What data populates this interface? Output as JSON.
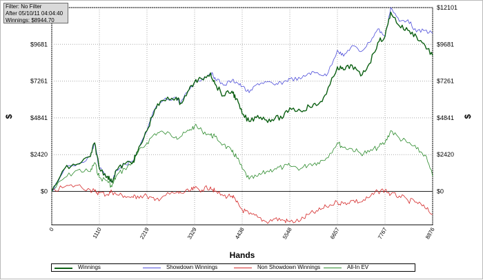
{
  "info": {
    "filter": "Filter: No Filter",
    "after": "After 05/10/11 04:04:40",
    "winnings": "Winnings: $8944.70"
  },
  "colors": {
    "winnings": "#0b5f12",
    "showdown": "#4c4cd9",
    "non_showdown": "#d42828",
    "allin_ev": "#2a8a2a",
    "grid": "#a8a8a8"
  },
  "chart_data": {
    "type": "line",
    "xlabel": "Hands",
    "ylabel_left": "$",
    "ylabel_right": "$",
    "xlim": [
      0,
      8876
    ],
    "ylim": [
      -2200,
      12101
    ],
    "x_ticks": [
      0,
      1110,
      2219,
      3329,
      4438,
      5548,
      6657,
      7767,
      8876
    ],
    "y_ticks": [
      {
        "value": 0,
        "label": "$0"
      },
      {
        "value": 2420,
        "label": "$2420"
      },
      {
        "value": 4841,
        "label": "$4841"
      },
      {
        "value": 7261,
        "label": "$7261"
      },
      {
        "value": 9681,
        "label": "$9681"
      },
      {
        "value": 12101,
        "label": "$12101"
      }
    ],
    "grid": true,
    "legend_position": "bottom",
    "x": [
      0,
      300,
      600,
      900,
      1000,
      1110,
      1300,
      1400,
      1500,
      1700,
      1900,
      2000,
      2219,
      2400,
      2600,
      2900,
      3000,
      3200,
      3329,
      3500,
      3700,
      3800,
      4000,
      4200,
      4300,
      4438,
      4600,
      4800,
      5000,
      5200,
      5400,
      5548,
      5800,
      6000,
      6200,
      6400,
      6657,
      6800,
      7000,
      7200,
      7400,
      7600,
      7767,
      7900,
      8100,
      8300,
      8500,
      8700,
      8876
    ],
    "series": [
      {
        "name": "Winnings",
        "values": [
          0,
          1500,
          1800,
          2300,
          3200,
          1500,
          1000,
          600,
          1400,
          1800,
          2000,
          2600,
          4000,
          5400,
          6000,
          6200,
          5800,
          6700,
          7200,
          7400,
          7800,
          7100,
          6300,
          6600,
          6100,
          5100,
          4600,
          5000,
          4700,
          4800,
          4900,
          5500,
          5300,
          5600,
          5700,
          6400,
          8200,
          8000,
          8300,
          7600,
          8400,
          9800,
          10200,
          11800,
          10900,
          10600,
          10200,
          9600,
          8945
        ]
      },
      {
        "name": "Showdown Winnings",
        "values": [
          0,
          1500,
          1800,
          2300,
          3200,
          1500,
          1000,
          600,
          1400,
          1800,
          2000,
          2600,
          4000,
          5400,
          6000,
          6200,
          5800,
          6700,
          7200,
          7400,
          7800,
          7500,
          7000,
          7300,
          7200,
          6900,
          6500,
          7100,
          7200,
          7000,
          7200,
          7400,
          7400,
          7800,
          7800,
          7600,
          9300,
          8900,
          9600,
          9200,
          9800,
          10700,
          10200,
          12101,
          11200,
          11300,
          10500,
          10600,
          10400
        ]
      },
      {
        "name": "Non Showdown Winnings",
        "values": [
          0,
          300,
          400,
          100,
          0,
          -100,
          -200,
          0,
          -200,
          -300,
          -400,
          -300,
          -300,
          -600,
          -300,
          -100,
          -100,
          0,
          200,
          100,
          300,
          0,
          -300,
          -300,
          -700,
          -1200,
          -1500,
          -1700,
          -2000,
          -1800,
          -1900,
          -2000,
          -1900,
          -1500,
          -1300,
          -1000,
          -700,
          -800,
          -600,
          -700,
          -400,
          0,
          100,
          -200,
          -300,
          -600,
          -700,
          -1100,
          -1500
        ]
      },
      {
        "name": "All-In EV",
        "values": [
          0,
          900,
          1400,
          1300,
          1900,
          900,
          700,
          300,
          1000,
          1500,
          1900,
          2500,
          3200,
          3800,
          3900,
          3600,
          3600,
          4000,
          4300,
          4000,
          3700,
          3600,
          3100,
          2600,
          2300,
          1500,
          800,
          1000,
          1300,
          1500,
          1600,
          1700,
          1500,
          1800,
          1900,
          2200,
          3200,
          2900,
          2800,
          2500,
          2600,
          2900,
          3200,
          4000,
          3500,
          3200,
          2800,
          2400,
          1000
        ]
      }
    ]
  }
}
